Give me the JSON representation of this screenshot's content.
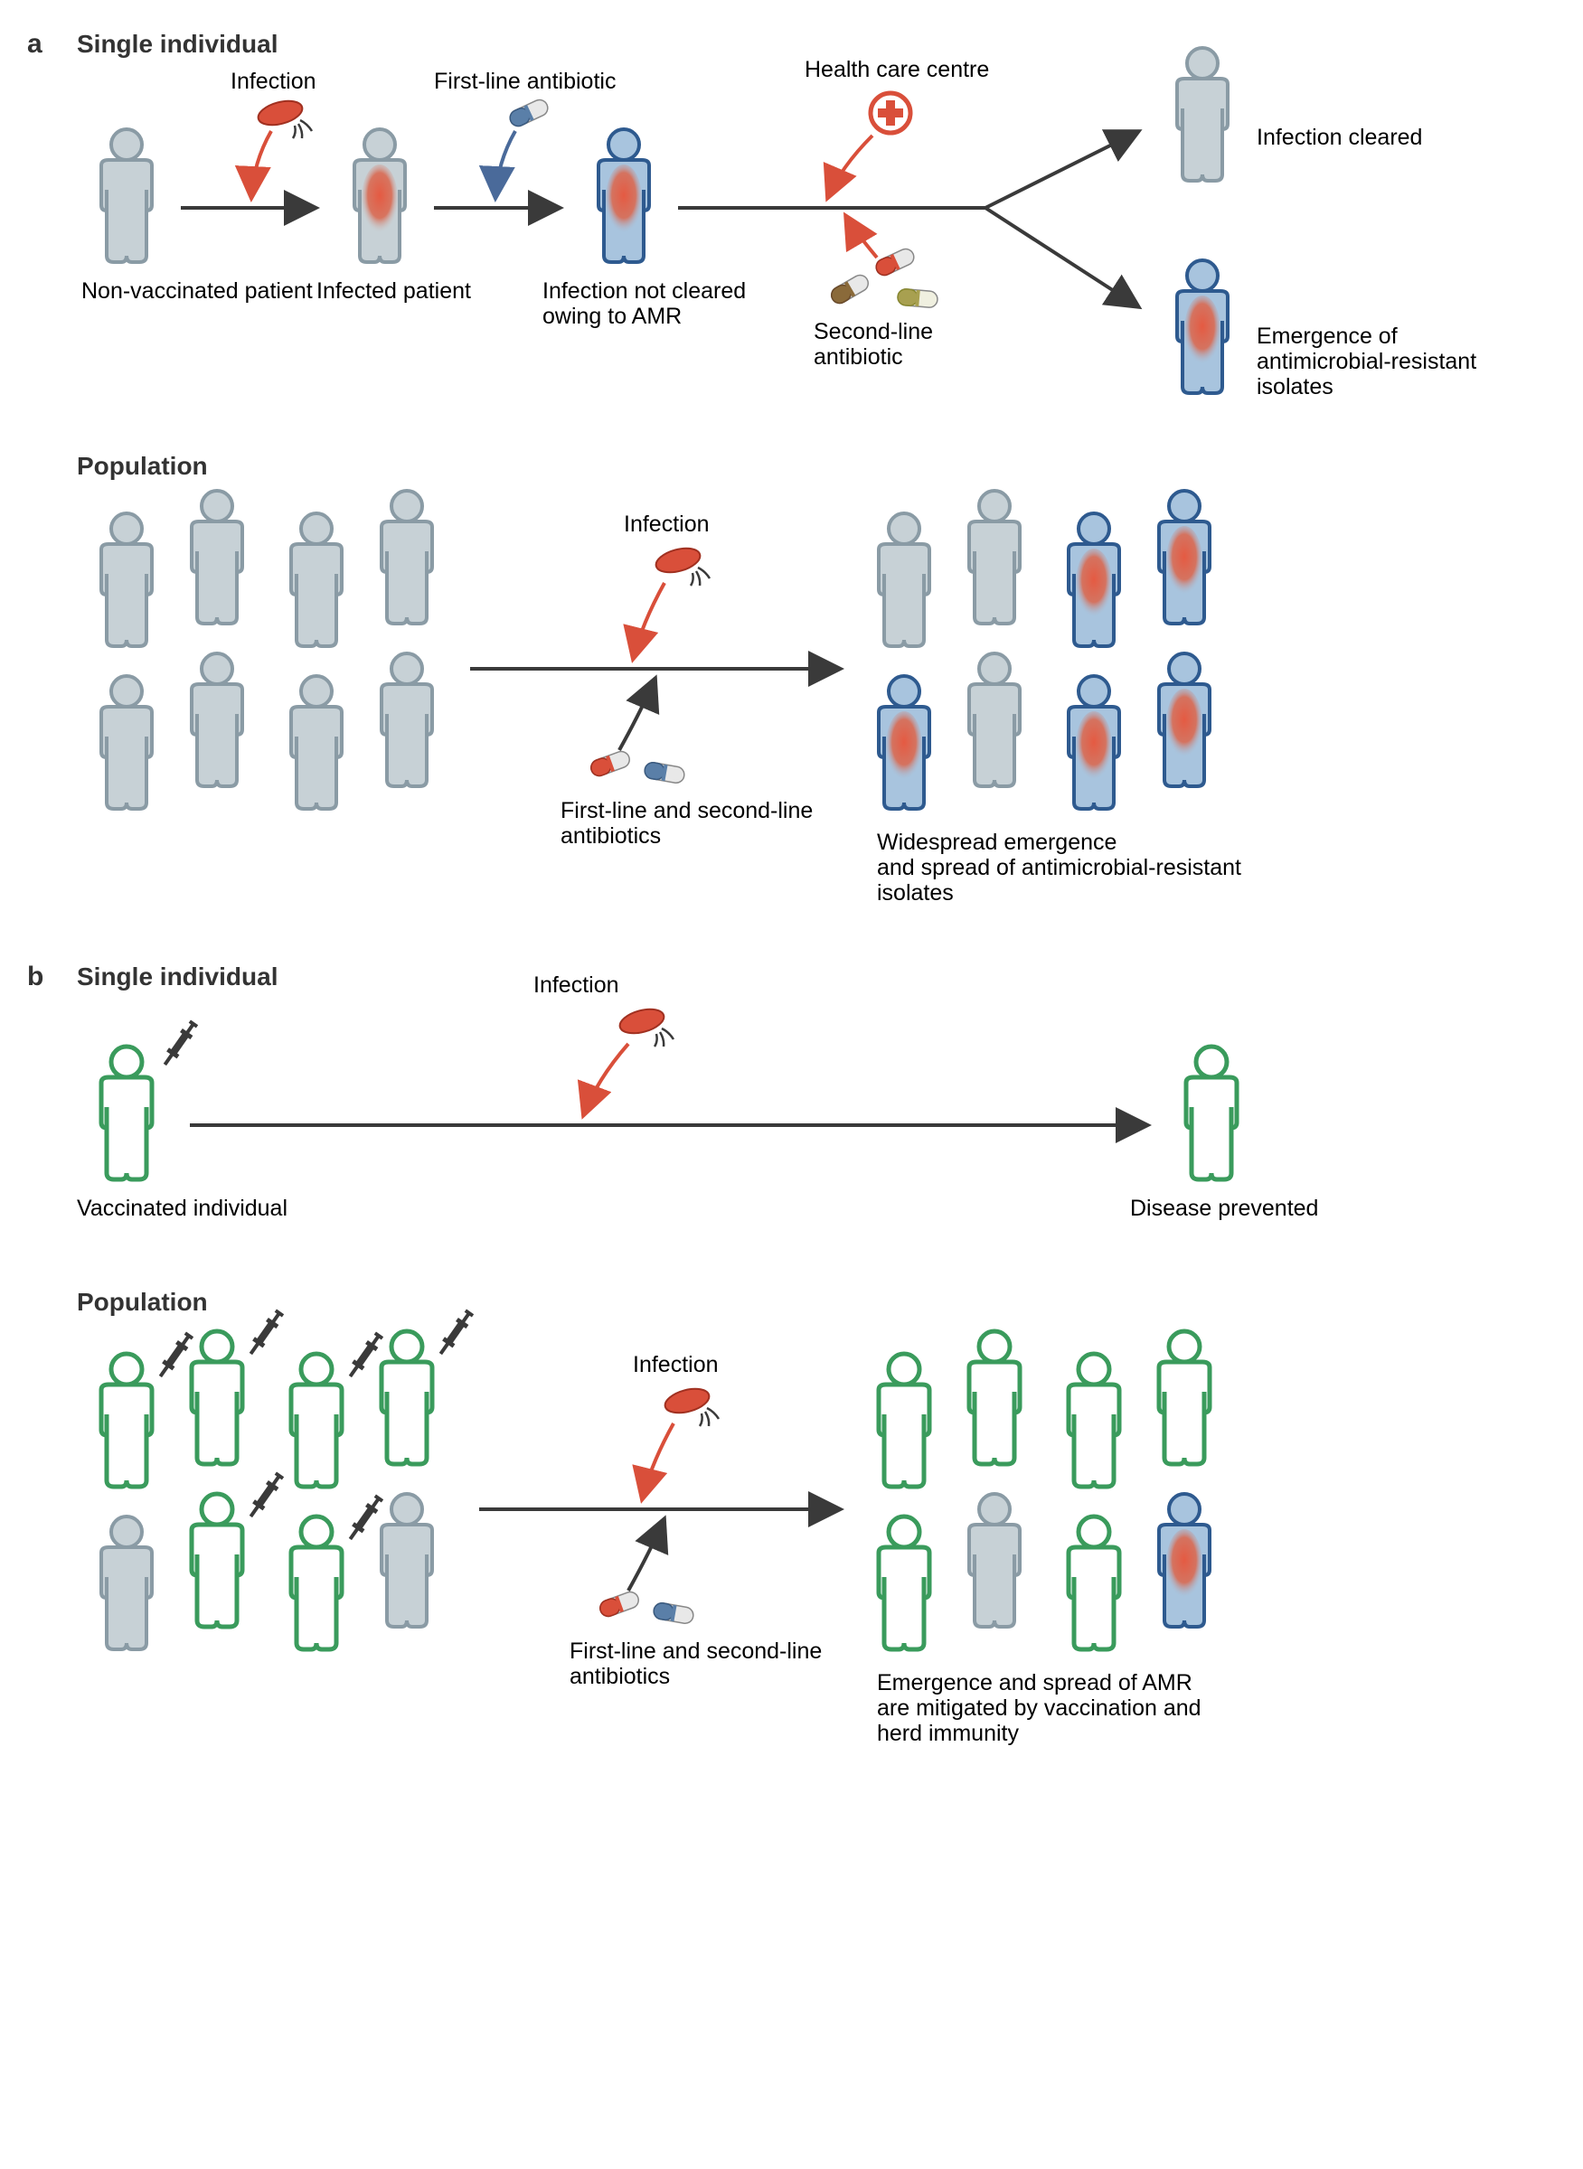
{
  "colors": {
    "person_gray_fill": "#c7d1d6",
    "person_gray_stroke": "#8a9ba5",
    "person_blue_stroke": "#2e5a8f",
    "person_blue_fill": "#a8c4de",
    "person_green_stroke": "#3a9b5c",
    "person_green_fill": "#ffffff",
    "infection_red": "#d94f3a",
    "infection_gradient_inner": "#e55a42",
    "infection_gradient_outer": "#a8c4de",
    "bacteria_fill": "#d94f3a",
    "bacteria_stroke": "#a03020",
    "pill_red": "#d94f3a",
    "pill_white": "#e8e8e8",
    "pill_blue": "#5a7fa8",
    "pill_brown": "#8a6a3a",
    "pill_olive": "#a8a050",
    "arrow_dark": "#3a3a3a",
    "arrow_red": "#d94f3a",
    "arrow_blue": "#4a6a9a",
    "cross_red": "#d94f3a",
    "syringe_dark": "#3a3a3a"
  },
  "panel_a": {
    "letter": "a",
    "individual": {
      "title": "Single individual",
      "labels": {
        "non_vaccinated": "Non-vaccinated\npatient",
        "infection": "Infection",
        "infected": "Infected patient",
        "first_line": "First-line antibiotic",
        "not_cleared": "Infection not cleared\nowing to AMR",
        "health_centre": "Health care centre",
        "second_line": "Second-line\nantibiotic",
        "cleared": "Infection cleared",
        "emergence": "Emergence of\nantimicrobial-resistant\nisolates"
      }
    },
    "population": {
      "title": "Population",
      "labels": {
        "infection": "Infection",
        "antibiotics": "First-line and second-line\nantibiotics",
        "widespread": "Widespread emergence\nand spread of antimicrobial-resistant\nisolates"
      }
    }
  },
  "panel_b": {
    "letter": "b",
    "individual": {
      "title": "Single individual",
      "labels": {
        "vaccinated": "Vaccinated individual",
        "infection": "Infection",
        "prevented": "Disease prevented"
      }
    },
    "population": {
      "title": "Population",
      "labels": {
        "infection": "Infection",
        "antibiotics": "First-line and second-line\nantibiotics",
        "mitigated": "Emergence and spread of AMR\nare mitigated by vaccination and\nherd immunity"
      }
    }
  }
}
